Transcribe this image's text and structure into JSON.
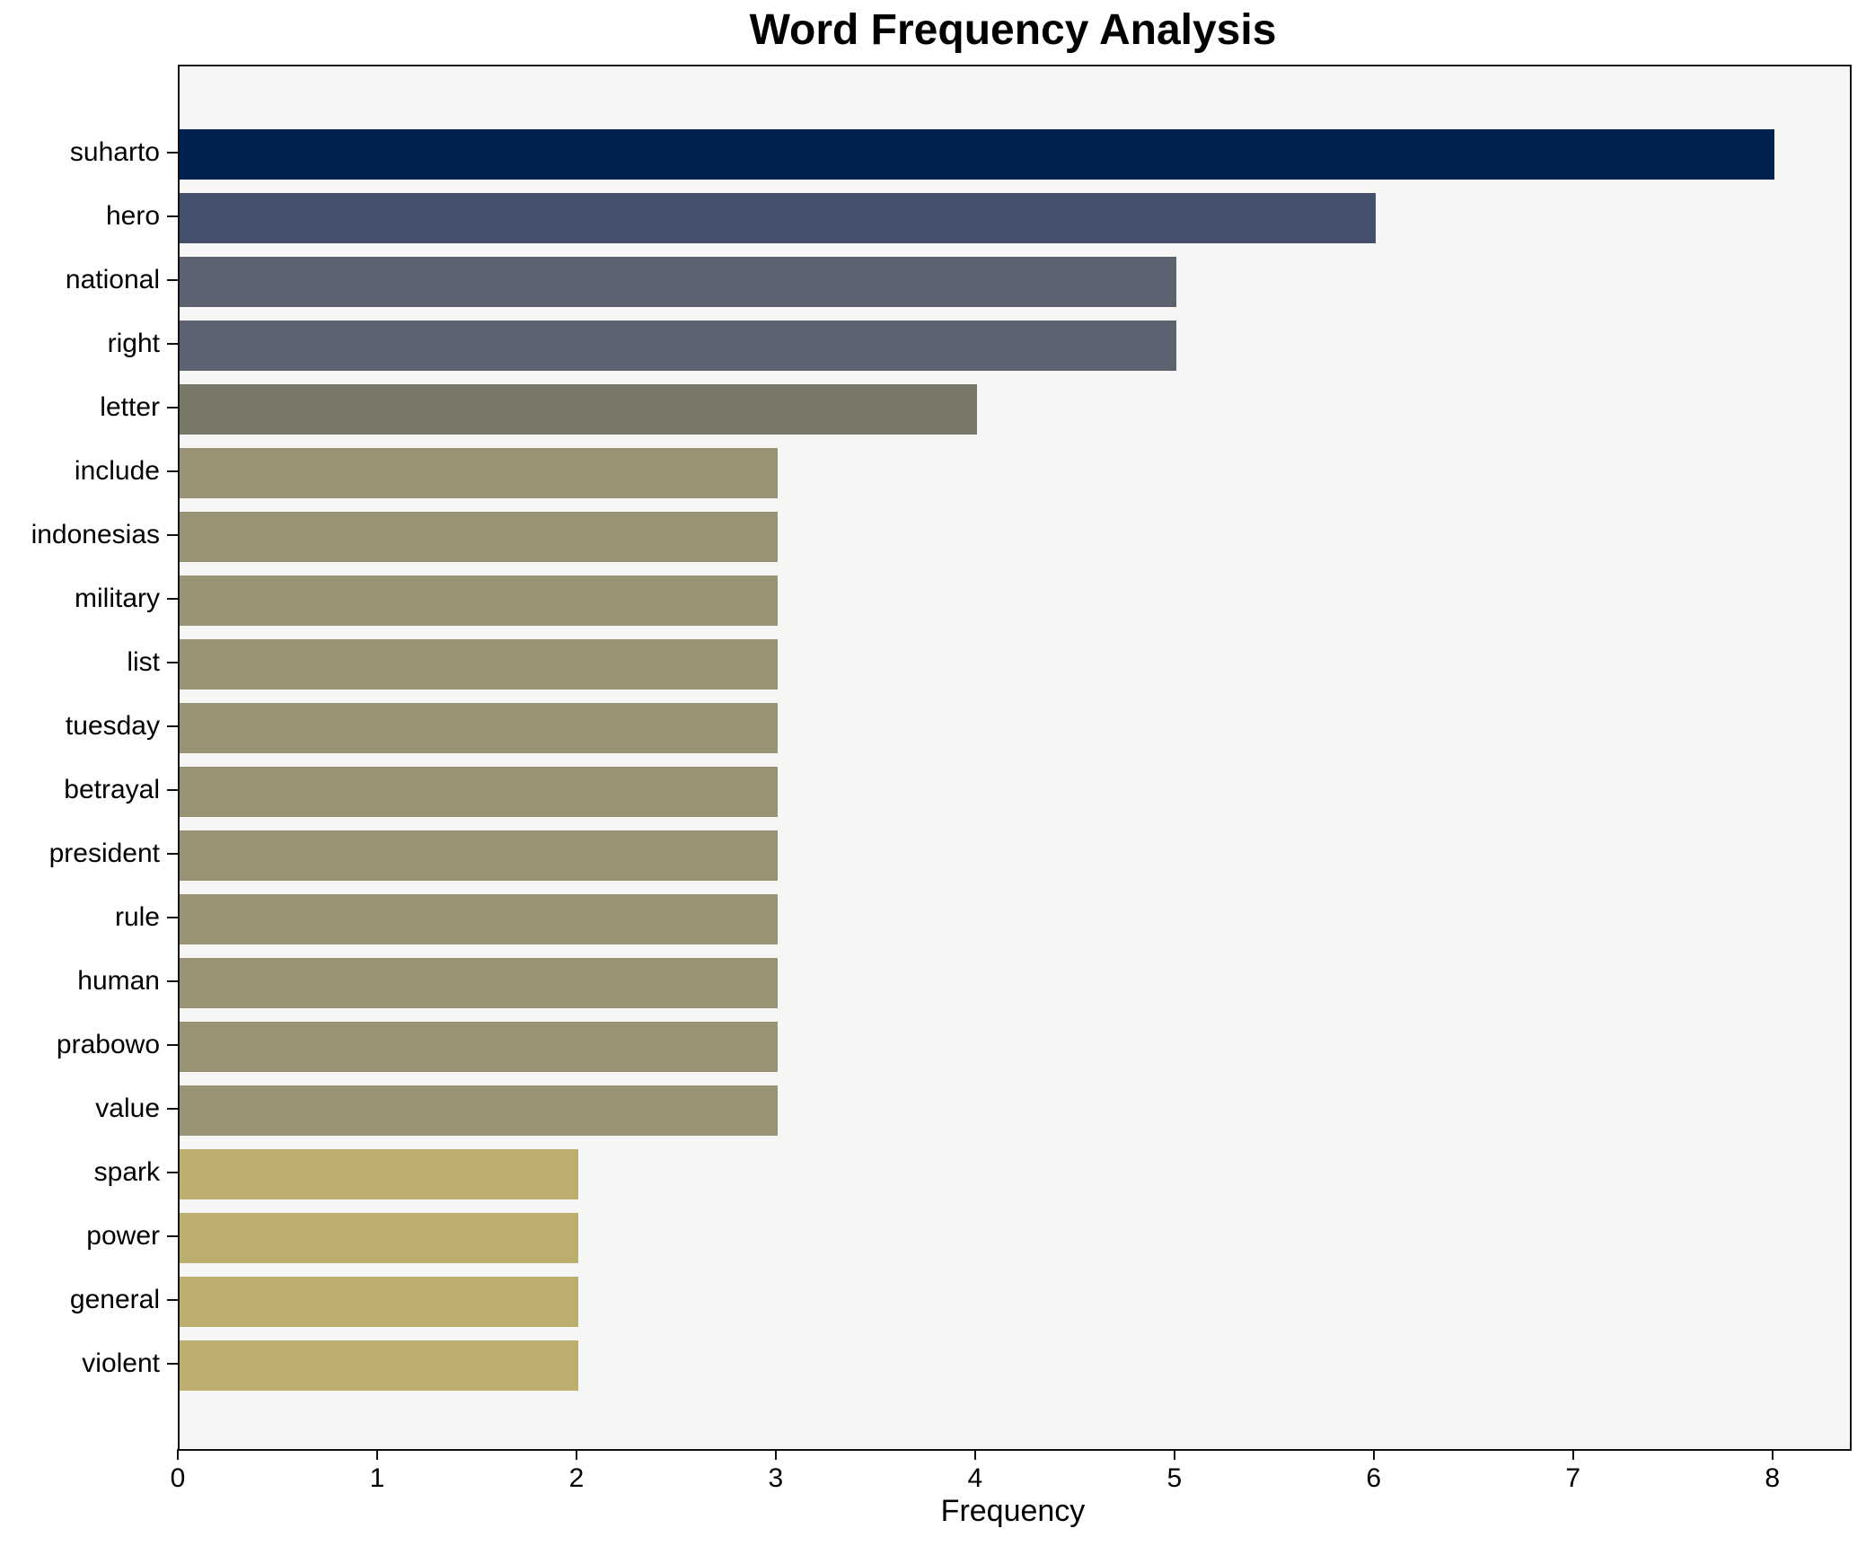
{
  "title": "Word Frequency Analysis",
  "xlabel": "Frequency",
  "colors": {
    "figure_bg": "#ffffff",
    "plot_bg": "#f6f6f4",
    "spine": "#111111",
    "text": "#000000",
    "freq8": "#00224e",
    "freq6": "#44506c",
    "freq5": "#5d6270",
    "freq4": "#7a7868",
    "freq3": "#999274",
    "freq2": "#bcae6c"
  },
  "chart_data": {
    "type": "bar",
    "orientation": "horizontal",
    "title": "Word Frequency Analysis",
    "xlabel": "Frequency",
    "ylabel": "",
    "grid": false,
    "legend": false,
    "categories": [
      "suharto",
      "hero",
      "national",
      "right",
      "letter",
      "include",
      "indonesias",
      "military",
      "list",
      "tuesday",
      "betrayal",
      "president",
      "rule",
      "human",
      "prabowo",
      "value",
      "spark",
      "power",
      "general",
      "violent"
    ],
    "values": [
      8,
      6,
      5,
      5,
      4,
      3,
      3,
      3,
      3,
      3,
      3,
      3,
      3,
      3,
      3,
      3,
      2,
      2,
      2,
      2
    ],
    "bar_colors": [
      "#00224e",
      "#44506c",
      "#5d6270",
      "#5d6270",
      "#7a7868",
      "#999274",
      "#999274",
      "#999274",
      "#999274",
      "#999274",
      "#999274",
      "#999274",
      "#999274",
      "#999274",
      "#999274",
      "#999274",
      "#bcae6c",
      "#bcae6c",
      "#bcae6c",
      "#bcae6c"
    ],
    "xlim": [
      0,
      8.38
    ],
    "xticks": [
      0,
      1,
      2,
      3,
      4,
      5,
      6,
      7,
      8
    ]
  }
}
